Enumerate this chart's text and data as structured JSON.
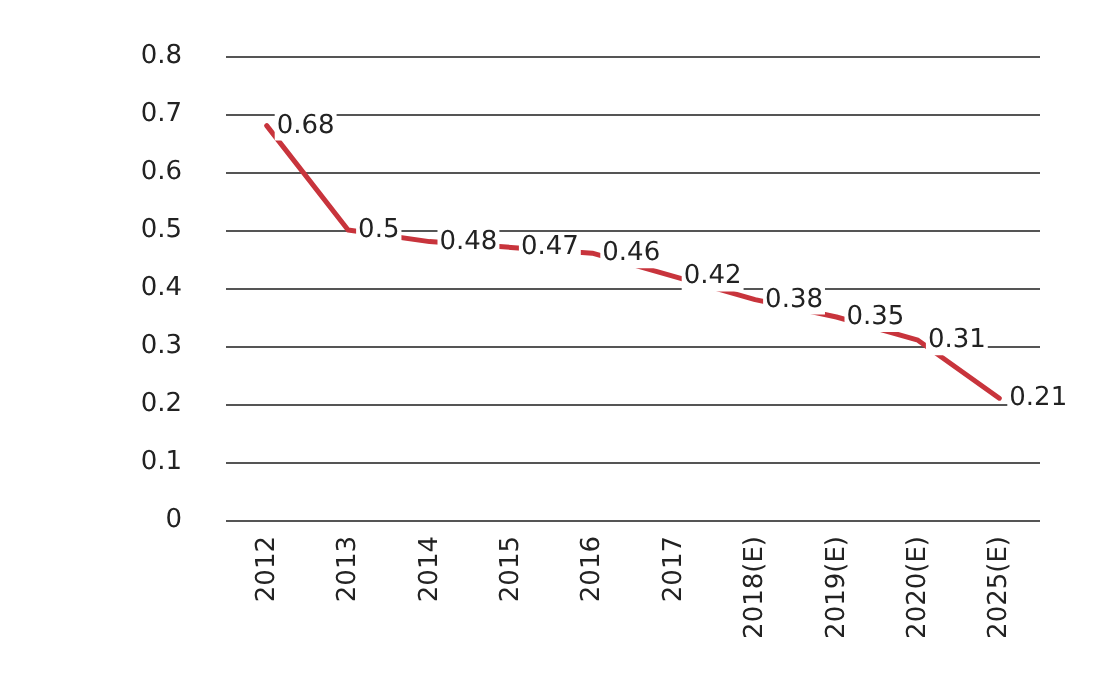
{
  "chart_data": {
    "type": "line",
    "categories": [
      "2012",
      "2013",
      "2014",
      "2015",
      "2016",
      "2017",
      "2018(E)",
      "2019(E)",
      "2020(E)",
      "2025(E)"
    ],
    "series": [
      {
        "color": "#c8343c",
        "values": [
          0.68,
          0.5,
          0.48,
          0.47,
          0.46,
          0.42,
          0.38,
          0.35,
          0.31,
          0.21
        ]
      }
    ],
    "ylim": [
      0,
      0.8
    ],
    "yticks": [
      0,
      0.1,
      0.2,
      0.3,
      0.4,
      0.5,
      0.6,
      0.7,
      0.8
    ],
    "grid": "y",
    "data_labels": true,
    "marker": "none",
    "line_style": "solid"
  }
}
